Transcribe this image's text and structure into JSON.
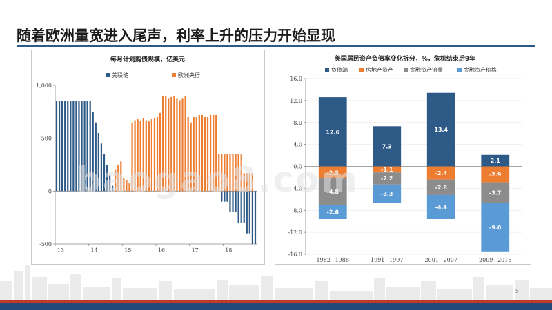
{
  "slide": {
    "title": "随着欧洲量宽进入尾声，利率上升的压力开始显现",
    "page_number": "5",
    "watermark": "baogao8.com"
  },
  "colors": {
    "navy": "#2e5a87",
    "orange": "#ed7d31",
    "gray": "#8c8c8c",
    "lightblue": "#5b9bd5",
    "rule": "#2e5a87"
  },
  "chart_data": [
    {
      "type": "bar",
      "title": "每月计划购债规模，亿美元",
      "ylim": [
        -500,
        1000
      ],
      "yticks": [
        "-500",
        "0",
        "500",
        "1,000"
      ],
      "ytick_values": [
        -500,
        0,
        500,
        1000
      ],
      "xtick_labels": [
        "13",
        "14",
        "15",
        "16",
        "17",
        "18"
      ],
      "xtick_index": [
        0,
        12,
        24,
        36,
        48,
        60
      ],
      "n_months": 72,
      "series": [
        {
          "name": "美联储",
          "color": "#2e5a87",
          "values": [
            850,
            850,
            850,
            850,
            850,
            850,
            850,
            850,
            850,
            850,
            850,
            850,
            850,
            750,
            650,
            550,
            450,
            350,
            250,
            150,
            50,
            0,
            0,
            0,
            0,
            0,
            0,
            0,
            0,
            0,
            0,
            0,
            0,
            0,
            0,
            0,
            0,
            0,
            0,
            0,
            0,
            0,
            0,
            0,
            0,
            0,
            0,
            0,
            0,
            0,
            0,
            0,
            0,
            0,
            0,
            0,
            0,
            0,
            0,
            -100,
            -100,
            -100,
            -200,
            -200,
            -200,
            -300,
            -300,
            -300,
            -400,
            -400,
            -500,
            -500
          ]
        },
        {
          "name": "欧洲央行",
          "color": "#ed7d31",
          "values": [
            0,
            0,
            0,
            0,
            0,
            0,
            0,
            0,
            0,
            0,
            0,
            0,
            0,
            0,
            0,
            0,
            0,
            0,
            0,
            0,
            0,
            200,
            250,
            280,
            120,
            100,
            80,
            650,
            670,
            680,
            660,
            690,
            670,
            660,
            680,
            690,
            700,
            740,
            900,
            900,
            880,
            890,
            900,
            880,
            860,
            880,
            900,
            700,
            650,
            700,
            700,
            720,
            720,
            700,
            700,
            720,
            720,
            720,
            350,
            350,
            350,
            350,
            350,
            350,
            350,
            350,
            350,
            170,
            170,
            170,
            170,
            0
          ]
        }
      ]
    },
    {
      "type": "bar",
      "title": "美国居民资产负债率变化拆分，%，危机结束后9年",
      "ylim": [
        -16,
        16
      ],
      "yticks": [
        "16.0",
        "12.0",
        "8.0",
        "4.0",
        "0.0",
        "-4.0",
        "-8.0",
        "-12.0",
        "-16.0"
      ],
      "ytick_values": [
        16,
        12,
        8,
        4,
        0,
        -4,
        -8,
        -12,
        -16
      ],
      "categories": [
        "1982~1988",
        "1991~1997",
        "2001~2007",
        "2009~2018"
      ],
      "series": [
        {
          "name": "负债端",
          "color": "#2e5a87",
          "values": [
            12.6,
            7.3,
            13.4,
            2.1
          ],
          "labels": [
            "12.6",
            "7.3",
            "13.4",
            "2.1"
          ]
        },
        {
          "name": "房地产资产",
          "color": "#ed7d31",
          "values": [
            -2.2,
            -1.1,
            -2.4,
            -2.9
          ],
          "labels": [
            "-2.2",
            "-1.1",
            "-2.4",
            "-2.9"
          ]
        },
        {
          "name": "金融资产流量",
          "color": "#8c8c8c",
          "values": [
            -4.8,
            -2.2,
            -2.8,
            -3.7
          ],
          "labels": [
            "-4.8",
            "-2.2",
            "-2.8",
            "-3.7"
          ]
        },
        {
          "name": "金融资产价格",
          "color": "#5b9bd5",
          "values": [
            -2.6,
            -3.3,
            -4.4,
            -9.0
          ],
          "labels": [
            "-2.6",
            "-3.3",
            "-4.4",
            "-9.0"
          ]
        }
      ]
    }
  ]
}
